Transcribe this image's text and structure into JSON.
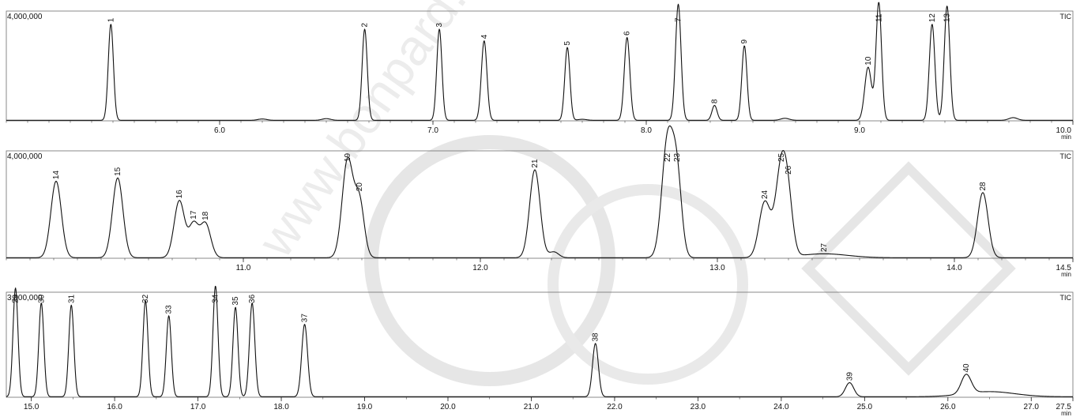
{
  "watermark_text": "www.bonpard...",
  "chart_data": [
    {
      "type": "line",
      "ylabel_max": "4,000,000",
      "ymax": 4000000,
      "trace_label": "TIC",
      "xlim": [
        5.0,
        10.0
      ],
      "xticks": [
        6.0,
        7.0,
        8.0,
        9.0,
        10.0
      ],
      "xtick_labels": [
        "6.0",
        "7.0",
        "8.0",
        "9.0",
        "10.0"
      ],
      "xunit": "min",
      "peaks": [
        {
          "label": "1",
          "x": 5.49,
          "y": 2900000,
          "w": 0.012
        },
        {
          "label": "2",
          "x": 6.68,
          "y": 2750000,
          "w": 0.012
        },
        {
          "label": "3",
          "x": 7.03,
          "y": 2750000,
          "w": 0.012
        },
        {
          "label": "4",
          "x": 7.24,
          "y": 2400000,
          "w": 0.013
        },
        {
          "label": "5",
          "x": 7.63,
          "y": 2200000,
          "w": 0.012
        },
        {
          "label": "6",
          "x": 7.91,
          "y": 2500000,
          "w": 0.013
        },
        {
          "label": "7",
          "x": 8.15,
          "y": 3500000,
          "w": 0.013
        },
        {
          "label": "8",
          "x": 8.32,
          "y": 450000,
          "w": 0.012
        },
        {
          "label": "9",
          "x": 8.46,
          "y": 2250000,
          "w": 0.012
        },
        {
          "label": "10",
          "x": 9.04,
          "y": 1600000,
          "w": 0.016
        },
        {
          "label": "11",
          "x": 9.09,
          "y": 3550000,
          "w": 0.013
        },
        {
          "label": "12",
          "x": 9.34,
          "y": 2900000,
          "w": 0.013
        },
        {
          "label": "13",
          "x": 9.41,
          "y": 3450000,
          "w": 0.013
        }
      ],
      "minor_bumps": [
        {
          "x": 6.2,
          "y": 40000,
          "w": 0.02
        },
        {
          "x": 6.5,
          "y": 50000,
          "w": 0.02
        },
        {
          "x": 7.7,
          "y": 30000,
          "w": 0.02
        },
        {
          "x": 8.65,
          "y": 60000,
          "w": 0.02
        },
        {
          "x": 9.72,
          "y": 80000,
          "w": 0.02
        }
      ]
    },
    {
      "type": "line",
      "ylabel_max": "4,000,000",
      "ymax": 4000000,
      "trace_label": "TIC",
      "xlim": [
        10.0,
        14.5
      ],
      "xticks": [
        11.0,
        12.0,
        13.0,
        14.0,
        14.5
      ],
      "xtick_labels": [
        "11.0",
        "12.0",
        "13.0",
        "14.0",
        "14.5"
      ],
      "xunit": "min",
      "peaks": [
        {
          "label": "14",
          "x": 10.21,
          "y": 2350000,
          "w": 0.022
        },
        {
          "label": "15",
          "x": 10.47,
          "y": 2450000,
          "w": 0.022
        },
        {
          "label": "16",
          "x": 10.73,
          "y": 1750000,
          "w": 0.022
        },
        {
          "label": "17",
          "x": 10.79,
          "y": 1000000,
          "w": 0.02
        },
        {
          "label": "18",
          "x": 10.84,
          "y": 1050000,
          "w": 0.022
        },
        {
          "label": "19",
          "x": 11.44,
          "y": 3000000,
          "w": 0.023
        },
        {
          "label": "20",
          "x": 11.49,
          "y": 1700000,
          "w": 0.02
        },
        {
          "label": "21",
          "x": 12.23,
          "y": 2700000,
          "w": 0.022
        },
        {
          "label": "22",
          "x": 12.79,
          "y": 3600000,
          "w": 0.024
        },
        {
          "label": "23",
          "x": 12.83,
          "y": 2300000,
          "w": 0.02
        },
        {
          "label": "24",
          "x": 13.2,
          "y": 1700000,
          "w": 0.024
        },
        {
          "label": "25",
          "x": 13.27,
          "y": 2750000,
          "w": 0.024
        },
        {
          "label": "26",
          "x": 13.3,
          "y": 1200000,
          "w": 0.02
        },
        {
          "label": "27",
          "x": 13.45,
          "y": 120000,
          "w": 0.1
        },
        {
          "label": "28",
          "x": 14.12,
          "y": 2000000,
          "w": 0.022
        }
      ],
      "minor_bumps": [
        {
          "x": 12.31,
          "y": 180000,
          "w": 0.02
        }
      ]
    },
    {
      "type": "line",
      "ylabel_max": "3,000,000",
      "ymax": 3000000,
      "trace_label": "TIC",
      "xlim": [
        14.7,
        27.5
      ],
      "xticks": [
        15.0,
        16.0,
        17.0,
        18.0,
        19.0,
        20.0,
        21.0,
        22.0,
        23.0,
        24.0,
        25.0,
        26.0,
        27.0,
        27.5
      ],
      "xtick_labels": [
        "15.0",
        "16.0",
        "17.0",
        "18.0",
        "19.0",
        "20.0",
        "21.0",
        "22.0",
        "23.0",
        "24.0",
        "25.0",
        "26.0",
        "27.0",
        "27.5"
      ],
      "xunit": "min",
      "peaks": [
        {
          "label": "29",
          "x": 14.81,
          "y": 2550000,
          "w": 0.03
        },
        {
          "label": "30",
          "x": 15.12,
          "y": 2200000,
          "w": 0.03
        },
        {
          "label": "31",
          "x": 15.48,
          "y": 2150000,
          "w": 0.03
        },
        {
          "label": "32",
          "x": 16.37,
          "y": 2250000,
          "w": 0.03
        },
        {
          "label": "33",
          "x": 16.65,
          "y": 1900000,
          "w": 0.03
        },
        {
          "label": "34",
          "x": 17.21,
          "y": 2600000,
          "w": 0.03
        },
        {
          "label": "35",
          "x": 17.45,
          "y": 2100000,
          "w": 0.03
        },
        {
          "label": "36",
          "x": 17.65,
          "y": 2200000,
          "w": 0.032
        },
        {
          "label": "37",
          "x": 18.28,
          "y": 1700000,
          "w": 0.035
        },
        {
          "label": "38",
          "x": 21.77,
          "y": 1250000,
          "w": 0.035
        },
        {
          "label": "39",
          "x": 24.82,
          "y": 330000,
          "w": 0.05
        },
        {
          "label": "40",
          "x": 26.22,
          "y": 450000,
          "w": 0.06
        }
      ],
      "minor_bumps": [
        {
          "x": 26.5,
          "y": 120000,
          "w": 0.3
        }
      ]
    }
  ]
}
